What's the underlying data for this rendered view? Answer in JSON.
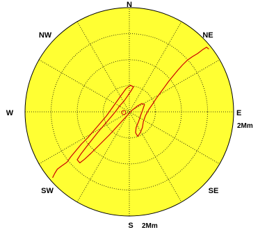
{
  "chart_data": {
    "type": "polar-track",
    "background_color": "#ffff33",
    "track_color": "#cc0000",
    "grid": true,
    "ring_count": 4,
    "spoke_step_deg": 30,
    "compass": {
      "n": "N",
      "ne": "NE",
      "e": "E",
      "se": "SE",
      "s": "S",
      "sw": "SW",
      "w": "W",
      "nw": "NW"
    },
    "range_labels": {
      "east": "2Mm",
      "south": "2Mm"
    },
    "max_range_mm": 2,
    "track_mm": [
      [
        -1.47,
        -1.26
      ],
      [
        -1.43,
        -1.18
      ],
      [
        -1.38,
        -1.1
      ],
      [
        -1.3,
        -1.04
      ],
      [
        -1.2,
        -0.97
      ],
      [
        -1.12,
        -0.86
      ],
      [
        -1.02,
        -0.74
      ],
      [
        -0.92,
        -0.62
      ],
      [
        -0.8,
        -0.5
      ],
      [
        -0.68,
        -0.36
      ],
      [
        -0.56,
        -0.22
      ],
      [
        -0.44,
        -0.08
      ],
      [
        -0.34,
        0.06
      ],
      [
        -0.24,
        0.2
      ],
      [
        -0.14,
        0.34
      ],
      [
        -0.06,
        0.45
      ],
      [
        0.02,
        0.51
      ],
      [
        0.08,
        0.48
      ],
      [
        0.03,
        0.4
      ],
      [
        -0.03,
        0.31
      ],
      [
        -0.1,
        0.21
      ],
      [
        -0.18,
        0.12
      ],
      [
        -0.27,
        0.0
      ],
      [
        -0.37,
        -0.12
      ],
      [
        -0.49,
        -0.26
      ],
      [
        -0.61,
        -0.4
      ],
      [
        -0.72,
        -0.54
      ],
      [
        -0.83,
        -0.68
      ],
      [
        -0.93,
        -0.81
      ],
      [
        -1.0,
        -0.92
      ],
      [
        -0.95,
        -0.98
      ],
      [
        -0.86,
        -0.91
      ],
      [
        -0.74,
        -0.8
      ],
      [
        -0.62,
        -0.68
      ],
      [
        -0.5,
        -0.56
      ],
      [
        -0.38,
        -0.44
      ],
      [
        -0.27,
        -0.32
      ],
      [
        -0.16,
        -0.2
      ],
      [
        -0.05,
        -0.08
      ],
      [
        0.05,
        0.03
      ],
      [
        0.15,
        0.11
      ],
      [
        0.24,
        0.16
      ],
      [
        0.29,
        0.14
      ],
      [
        0.26,
        0.05
      ],
      [
        0.22,
        -0.06
      ],
      [
        0.18,
        -0.18
      ],
      [
        0.13,
        -0.3
      ],
      [
        0.12,
        -0.4
      ],
      [
        0.16,
        -0.47
      ],
      [
        0.21,
        -0.4
      ],
      [
        0.25,
        -0.3
      ],
      [
        0.27,
        -0.18
      ],
      [
        0.31,
        -0.07
      ],
      [
        0.37,
        0.04
      ],
      [
        0.44,
        0.14
      ],
      [
        0.51,
        0.25
      ],
      [
        0.59,
        0.36
      ],
      [
        0.67,
        0.47
      ],
      [
        0.75,
        0.58
      ],
      [
        0.84,
        0.69
      ],
      [
        0.93,
        0.8
      ],
      [
        1.02,
        0.9
      ],
      [
        1.11,
        0.99
      ],
      [
        1.21,
        1.06
      ],
      [
        1.31,
        1.12
      ],
      [
        1.4,
        1.19
      ],
      [
        1.48,
        1.24
      ],
      [
        1.52,
        1.21
      ]
    ]
  }
}
